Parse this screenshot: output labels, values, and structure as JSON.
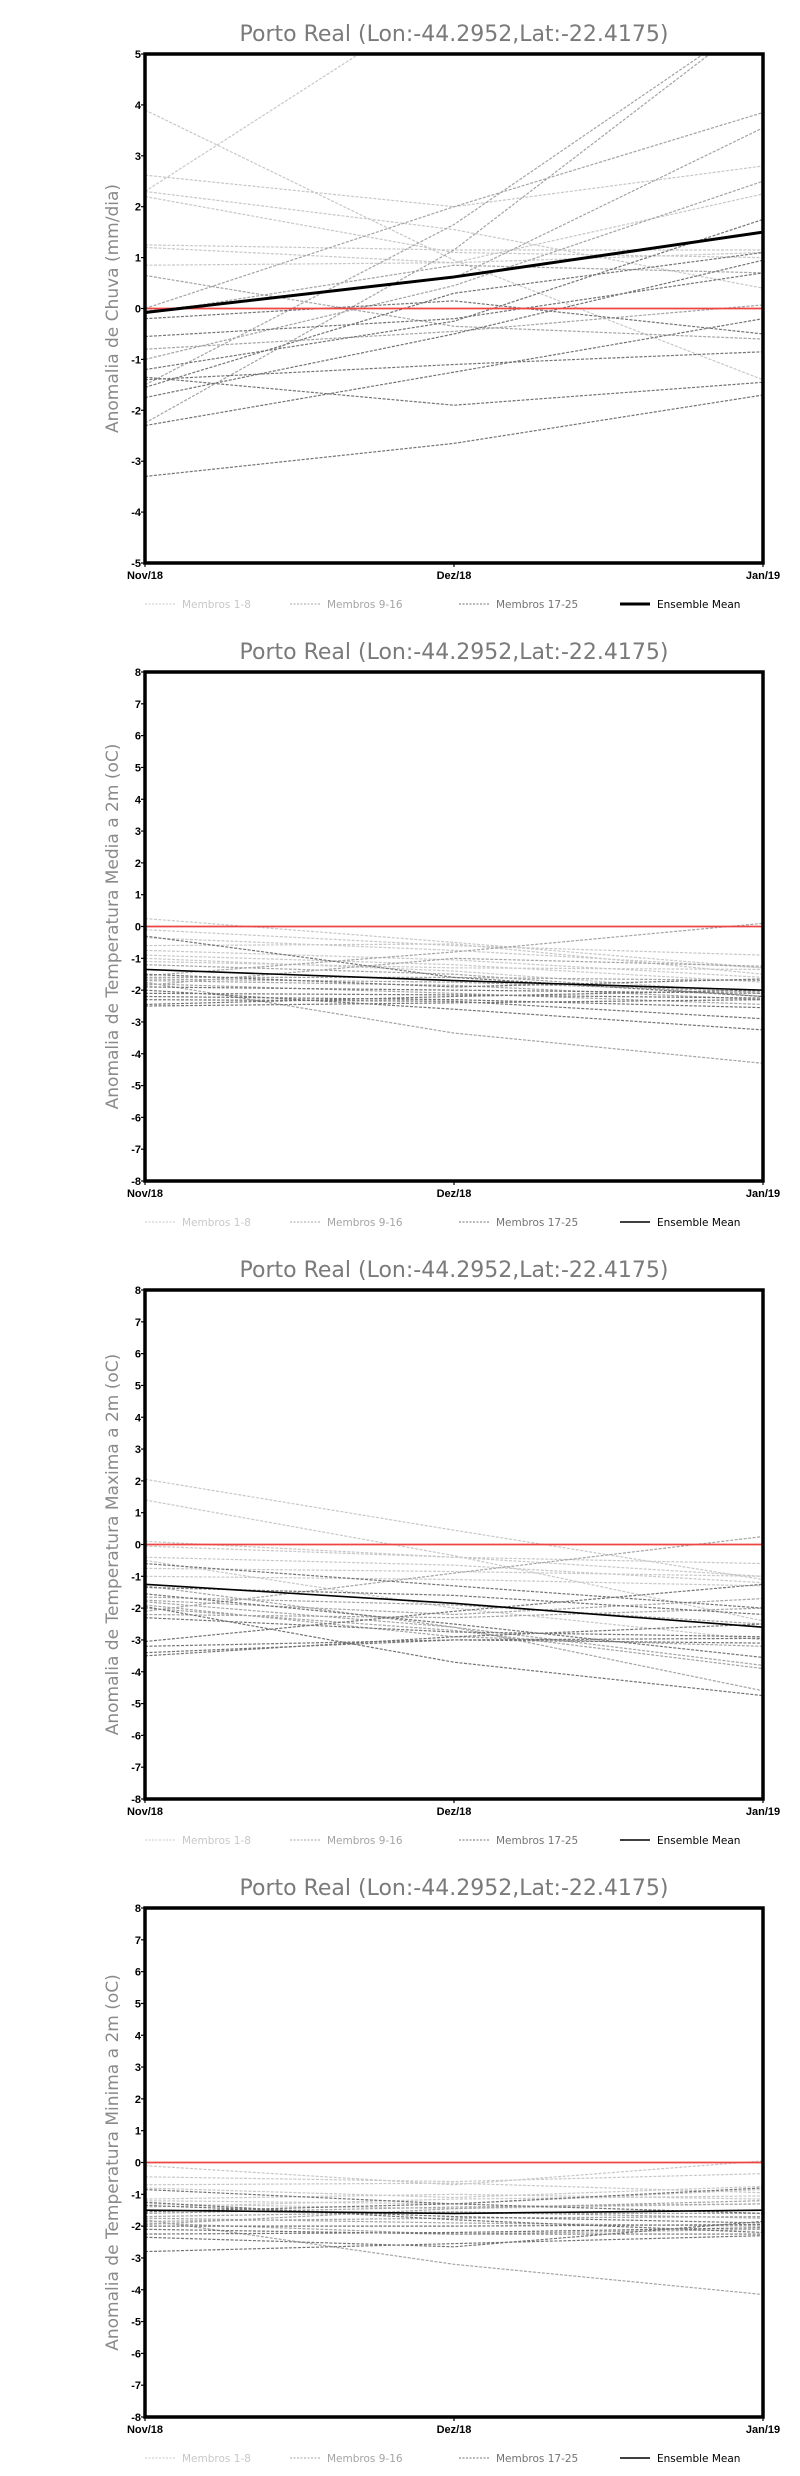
{
  "colors": {
    "group1": "#c8c8c8",
    "group2": "#a4a4a4",
    "group3": "#747474",
    "mean": "#000000",
    "zero": "#ee4444"
  },
  "legend": [
    "Membros 1-8",
    "Membros 9-16",
    "Membros 17-25",
    "Ensemble Mean"
  ],
  "chart_data": [
    {
      "type": "line",
      "title": "Porto Real (Lon:-44.2952,Lat:-22.4175)",
      "ylabel": "Anomalia de Chuva (mm/dia)",
      "xlabel": "",
      "categories": [
        "Nov/18",
        "Dez/18",
        "Jan/19"
      ],
      "ylim": [
        -5,
        5
      ],
      "yticks": [
        "5",
        "4",
        "3",
        "2",
        "1",
        "0",
        "-1",
        "-2",
        "-3",
        "-4",
        "-5"
      ],
      "grid": false,
      "reference_line": 0,
      "mean": [
        -0.08,
        0.62,
        1.5
      ],
      "members": [
        [
          2.3,
          6.2,
          8.0
        ],
        [
          3.9,
          0.95,
          -1.4
        ],
        [
          2.62,
          2.0,
          2.8
        ],
        [
          2.3,
          1.55,
          0.4
        ],
        [
          2.2,
          1.1,
          1.0
        ],
        [
          1.25,
          1.15,
          1.15
        ],
        [
          1.2,
          0.9,
          2.25
        ],
        [
          0.85,
          0.9,
          1.1
        ],
        [
          0.65,
          -0.35,
          -0.6
        ],
        [
          0.0,
          2.0,
          3.85
        ],
        [
          -0.05,
          0.6,
          3.55
        ],
        [
          -0.1,
          0.85,
          0.7
        ],
        [
          -1.5,
          1.65,
          5.8
        ],
        [
          -2.25,
          1.15,
          5.8
        ],
        [
          -1.0,
          0.45,
          2.5
        ],
        [
          -0.8,
          -0.45,
          0.07
        ],
        [
          -0.55,
          -0.2,
          0.7
        ],
        [
          -1.2,
          -0.25,
          1.75
        ],
        [
          -1.55,
          0.3,
          1.1
        ],
        [
          -1.4,
          -1.1,
          -0.85
        ],
        [
          -1.35,
          -1.9,
          -1.45
        ],
        [
          -2.3,
          -1.25,
          -0.2
        ],
        [
          -1.75,
          -0.5,
          0.95
        ],
        [
          -3.3,
          -2.65,
          -1.7
        ],
        [
          -0.2,
          0.15,
          -0.5
        ]
      ]
    },
    {
      "type": "line",
      "title": "Porto Real (Lon:-44.2952,Lat:-22.4175)",
      "ylabel": "Anomalia de Temperatura Media a 2m (oC)",
      "xlabel": "",
      "categories": [
        "Nov/18",
        "Dez/18",
        "Jan/19"
      ],
      "ylim": [
        -8,
        8
      ],
      "yticks": [
        "8",
        "7",
        "6",
        "5",
        "4",
        "3",
        "2",
        "1",
        "0",
        "-1",
        "-2",
        "-3",
        "-4",
        "-5",
        "-6",
        "-7",
        "-8"
      ],
      "grid": false,
      "reference_line": 0,
      "mean": [
        -1.35,
        -1.7,
        -2.0
      ],
      "members": [
        [
          0.25,
          -0.5,
          -1.3
        ],
        [
          -0.1,
          -0.6,
          -0.9
        ],
        [
          -0.35,
          -0.75,
          -1.3
        ],
        [
          -0.6,
          -0.55,
          -1.5
        ],
        [
          -0.75,
          -1.05,
          -1.6
        ],
        [
          -0.9,
          -1.2,
          -1.75
        ],
        [
          -1.0,
          -1.4,
          -2.1
        ],
        [
          -1.1,
          -1.3,
          -1.35
        ],
        [
          -1.2,
          -1.5,
          -2.2
        ],
        [
          -1.55,
          -0.8,
          0.1
        ],
        [
          -1.6,
          -1.6,
          -1.7
        ],
        [
          -1.65,
          -1.75,
          -2.05
        ],
        [
          -1.7,
          -1.85,
          -2.3
        ],
        [
          -1.75,
          -3.35,
          -4.3
        ],
        [
          -1.8,
          -2.1,
          -2.45
        ],
        [
          -1.85,
          -1.0,
          -1.25
        ],
        [
          -1.9,
          -2.0,
          -2.1
        ],
        [
          -2.0,
          -2.6,
          -3.25
        ],
        [
          -2.1,
          -2.15,
          -2.25
        ],
        [
          -2.2,
          -2.3,
          -2.55
        ],
        [
          -2.3,
          -2.35,
          -2.9
        ],
        [
          -2.45,
          -2.2,
          -2.0
        ],
        [
          -0.3,
          -1.6,
          -2.2
        ],
        [
          -1.5,
          -1.9,
          -1.65
        ],
        [
          -2.5,
          -2.4,
          -2.3
        ]
      ]
    },
    {
      "type": "line",
      "title": "Porto Real (Lon:-44.2952,Lat:-22.4175)",
      "ylabel": "Anomalia de Temperatura Maxima a 2m (oC)",
      "xlabel": "",
      "categories": [
        "Nov/18",
        "Dez/18",
        "Jan/19"
      ],
      "ylim": [
        -8,
        8
      ],
      "yticks": [
        "8",
        "7",
        "6",
        "5",
        "4",
        "3",
        "2",
        "1",
        "0",
        "-1",
        "-2",
        "-3",
        "-4",
        "-5",
        "-6",
        "-7",
        "-8"
      ],
      "grid": false,
      "reference_line": 0,
      "mean": [
        -1.25,
        -1.85,
        -2.6
      ],
      "members": [
        [
          2.05,
          0.45,
          -1.1
        ],
        [
          1.4,
          -0.35,
          -2.4
        ],
        [
          0.1,
          -0.4,
          -1.0
        ],
        [
          -0.05,
          -0.4,
          -0.6
        ],
        [
          -0.4,
          -0.65,
          -1.2
        ],
        [
          -0.5,
          -2.0,
          -3.0
        ],
        [
          -0.75,
          -0.85,
          -1.0
        ],
        [
          -1.0,
          -1.1,
          -1.3
        ],
        [
          -1.65,
          -1.9,
          -2.5
        ],
        [
          -1.3,
          -2.6,
          -4.6
        ],
        [
          -1.75,
          -2.2,
          -1.7
        ],
        [
          -1.8,
          -2.6,
          -3.8
        ],
        [
          -1.9,
          -2.9,
          -3.2
        ],
        [
          -2.0,
          -2.7,
          -3.9
        ],
        [
          -2.1,
          -0.9,
          0.25
        ],
        [
          -2.2,
          -2.3,
          -2.0
        ],
        [
          -1.95,
          -3.7,
          -4.75
        ],
        [
          -3.05,
          -2.1,
          -1.25
        ],
        [
          -3.2,
          -3.0,
          -3.1
        ],
        [
          -3.4,
          -3.0,
          -2.95
        ],
        [
          -3.5,
          -2.9,
          -2.5
        ],
        [
          -0.6,
          -1.3,
          -2.0
        ],
        [
          -1.55,
          -2.5,
          -3.55
        ],
        [
          -2.3,
          -2.75,
          -2.9
        ],
        [
          -1.35,
          -1.6,
          -2.2
        ]
      ]
    },
    {
      "type": "line",
      "title": "Porto Real (Lon:-44.2952,Lat:-22.4175)",
      "ylabel": "Anomalia de Temperatura Minima a 2m (oC)",
      "xlabel": "",
      "categories": [
        "Nov/18",
        "Dez/18",
        "Jan/19"
      ],
      "ylim": [
        -8,
        8
      ],
      "yticks": [
        "8",
        "7",
        "6",
        "5",
        "4",
        "3",
        "2",
        "1",
        "0",
        "-1",
        "-2",
        "-3",
        "-4",
        "-5",
        "-6",
        "-7",
        "-8"
      ],
      "grid": false,
      "reference_line": 0,
      "mean": [
        -1.5,
        -1.6,
        -1.5
      ],
      "members": [
        [
          -0.1,
          -0.7,
          0.05
        ],
        [
          -0.45,
          -0.6,
          -0.35
        ],
        [
          -0.7,
          -0.65,
          -0.95
        ],
        [
          -0.8,
          -1.1,
          -0.75
        ],
        [
          -1.15,
          -1.0,
          -1.15
        ],
        [
          -1.2,
          -1.3,
          -0.85
        ],
        [
          -1.3,
          -1.45,
          -1.3
        ],
        [
          -1.4,
          -1.15,
          -1.05
        ],
        [
          -1.5,
          -1.6,
          -1.6
        ],
        [
          -1.6,
          -1.4,
          -1.3
        ],
        [
          -1.7,
          -1.55,
          -1.75
        ],
        [
          -1.75,
          -1.9,
          -2.0
        ],
        [
          -1.8,
          -3.2,
          -4.15
        ],
        [
          -1.85,
          -1.75,
          -1.7
        ],
        [
          -1.9,
          -2.25,
          -2.1
        ],
        [
          -1.95,
          -1.45,
          -1.2
        ],
        [
          -2.1,
          -2.25,
          -2.25
        ],
        [
          -2.25,
          -2.2,
          -2.05
        ],
        [
          -2.35,
          -2.65,
          -1.85
        ],
        [
          -2.8,
          -2.55,
          -2.3
        ],
        [
          -0.85,
          -1.3,
          -1.6
        ],
        [
          -1.35,
          -1.7,
          -1.9
        ],
        [
          -1.25,
          -1.8,
          -2.2
        ],
        [
          -1.55,
          -1.3,
          -0.8
        ],
        [
          -2.0,
          -2.0,
          -1.95
        ]
      ]
    }
  ]
}
